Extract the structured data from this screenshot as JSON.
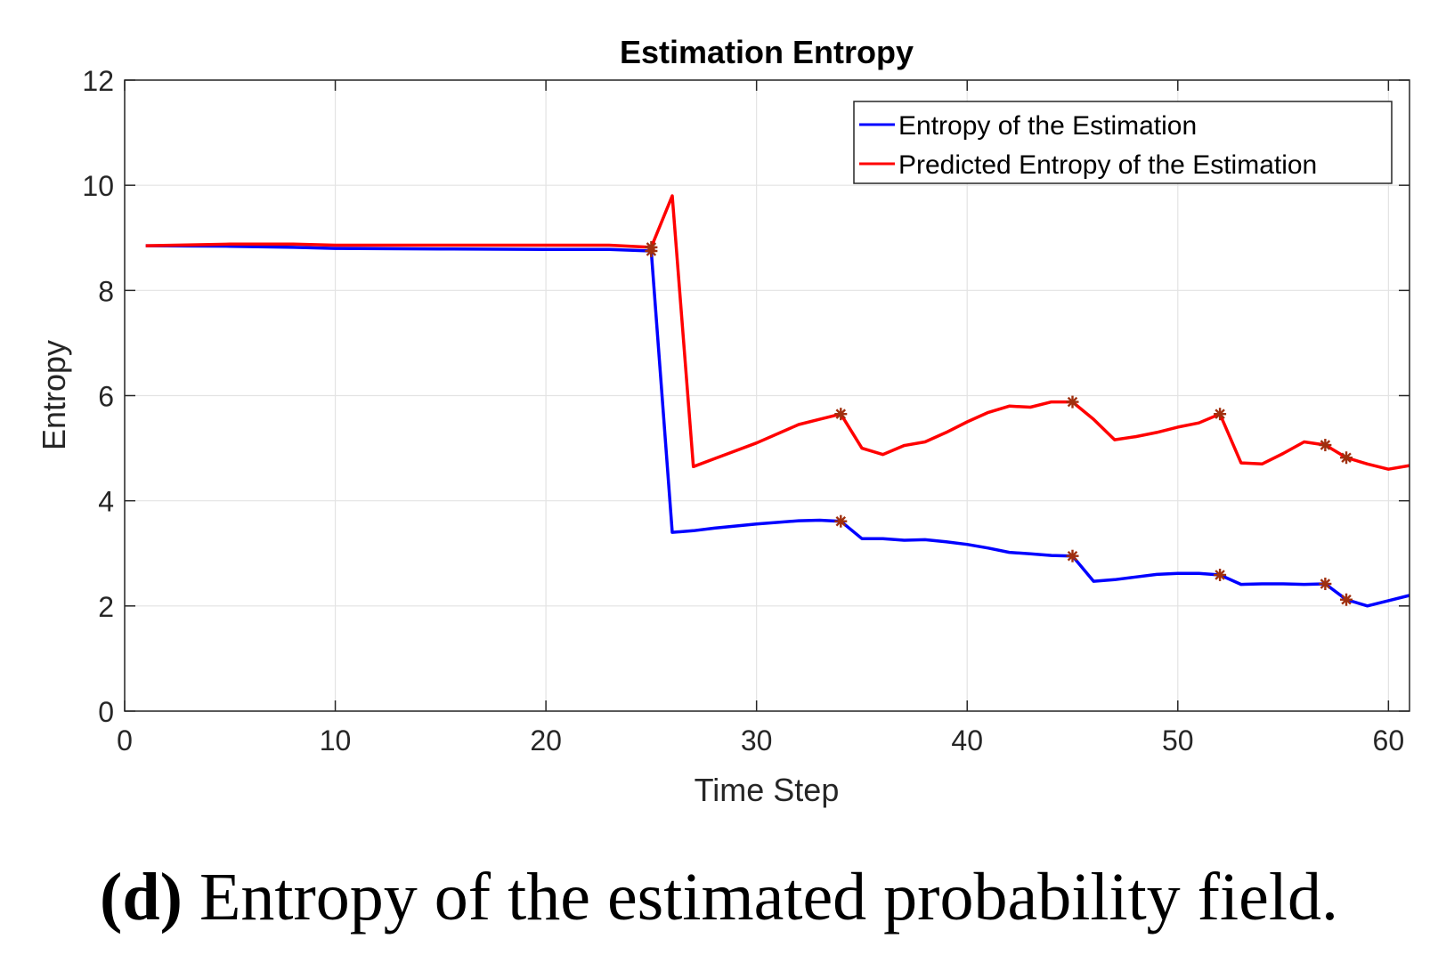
{
  "chart_data": {
    "type": "line",
    "title": "Estimation Entropy",
    "xlabel": "Time Step",
    "ylabel": "Entropy",
    "xlim": [
      0,
      61
    ],
    "ylim": [
      0,
      12
    ],
    "xticks": [
      0,
      10,
      20,
      30,
      40,
      50,
      60
    ],
    "yticks": [
      0,
      2,
      4,
      6,
      8,
      10,
      12
    ],
    "grid": true,
    "legend_position": "top-right",
    "series": [
      {
        "name": "Entropy of the Estimation",
        "color": "#0000ff",
        "x": [
          1,
          5,
          8,
          10,
          15,
          20,
          23,
          25,
          26,
          27,
          28,
          30,
          32,
          33,
          34,
          35,
          36,
          37,
          38,
          39,
          40,
          41,
          42,
          43,
          44,
          45,
          46,
          47,
          48,
          49,
          50,
          51,
          52,
          53,
          54,
          55,
          56,
          57,
          58,
          59,
          60,
          61
        ],
        "y": [
          8.85,
          8.84,
          8.82,
          8.8,
          8.79,
          8.78,
          8.78,
          8.75,
          3.4,
          3.43,
          3.48,
          3.56,
          3.62,
          3.63,
          3.61,
          3.28,
          3.28,
          3.25,
          3.26,
          3.22,
          3.17,
          3.1,
          3.02,
          2.99,
          2.96,
          2.95,
          2.47,
          2.5,
          2.55,
          2.6,
          2.62,
          2.62,
          2.59,
          2.41,
          2.42,
          2.42,
          2.41,
          2.42,
          2.12,
          2.0,
          2.1,
          2.2
        ]
      },
      {
        "name": "Predicted Entropy of the Estimation",
        "color": "#ff0000",
        "x": [
          1,
          5,
          8,
          10,
          15,
          20,
          23,
          25,
          26,
          27,
          28,
          30,
          32,
          33,
          34,
          35,
          36,
          37,
          38,
          39,
          40,
          41,
          42,
          43,
          44,
          45,
          46,
          47,
          48,
          49,
          50,
          51,
          52,
          53,
          54,
          55,
          56,
          57,
          58,
          59,
          60,
          61
        ],
        "y": [
          8.85,
          8.88,
          8.88,
          8.86,
          8.86,
          8.86,
          8.86,
          8.82,
          9.8,
          4.65,
          4.8,
          5.1,
          5.45,
          5.55,
          5.65,
          5.0,
          4.88,
          5.05,
          5.12,
          5.3,
          5.5,
          5.68,
          5.8,
          5.78,
          5.88,
          5.88,
          5.55,
          5.16,
          5.22,
          5.3,
          5.4,
          5.48,
          5.65,
          4.72,
          4.7,
          4.9,
          5.12,
          5.06,
          4.82,
          4.7,
          4.6,
          4.67
        ]
      }
    ],
    "markers": {
      "color": "#a0300f",
      "symbol": "asterisk",
      "x": [
        25,
        34,
        45,
        52,
        57,
        58
      ]
    }
  },
  "caption": {
    "label": "(d)",
    "text": " Entropy of the estimated probability field."
  }
}
